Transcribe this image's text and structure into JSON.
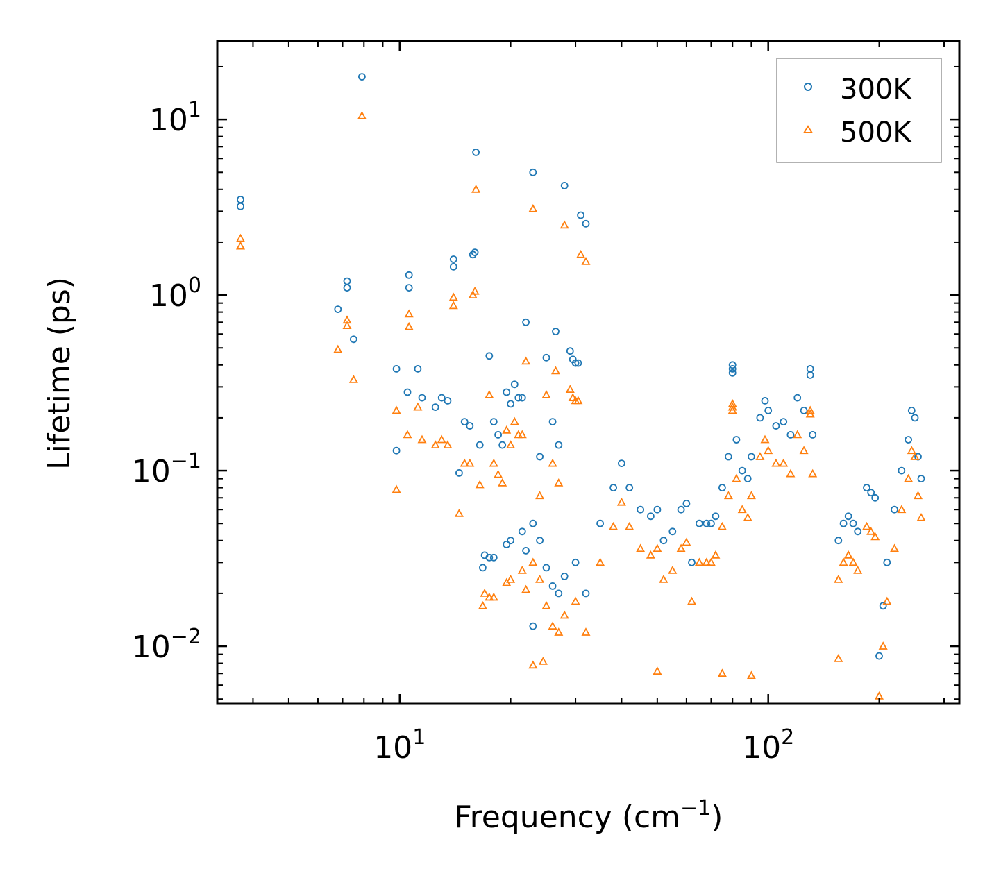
{
  "chart_data": {
    "type": "scatter",
    "title": "",
    "xlabel": "Frequency (cm",
    "xlabel_sup": "−1",
    "xlabel_close": ")",
    "ylabel": "Lifetime (ps)",
    "xscale": "log",
    "yscale": "log",
    "xlim": [
      3.2,
      330
    ],
    "ylim": [
      0.0047,
      28
    ],
    "x_ticks": [
      {
        "base": "10",
        "exp": "1",
        "value": 10
      },
      {
        "base": "10",
        "exp": "2",
        "value": 100
      }
    ],
    "y_ticks": [
      {
        "base": "10",
        "exp": "1",
        "value": 10
      },
      {
        "base": "10",
        "exp": "0",
        "value": 1
      },
      {
        "base": "10",
        "exp": "−1",
        "value": 0.1
      },
      {
        "base": "10",
        "exp": "−2",
        "value": 0.01
      }
    ],
    "legend_position": "top-right",
    "series": [
      {
        "name": "300K",
        "marker": "circle",
        "color": "#1f77b4",
        "points": [
          [
            3.7,
            3.5
          ],
          [
            3.7,
            3.2
          ],
          [
            6.8,
            0.83
          ],
          [
            7.2,
            1.2
          ],
          [
            7.2,
            1.1
          ],
          [
            7.5,
            0.56
          ],
          [
            7.9,
            17.5
          ],
          [
            9.8,
            0.38
          ],
          [
            9.8,
            0.13
          ],
          [
            10.5,
            0.28
          ],
          [
            10.6,
            1.3
          ],
          [
            10.6,
            1.1
          ],
          [
            11.2,
            0.38
          ],
          [
            11.5,
            0.26
          ],
          [
            12.5,
            0.23
          ],
          [
            13,
            0.26
          ],
          [
            13.5,
            0.25
          ],
          [
            14,
            1.6
          ],
          [
            14,
            1.45
          ],
          [
            14.5,
            0.097
          ],
          [
            15,
            0.19
          ],
          [
            15.5,
            0.18
          ],
          [
            15.8,
            1.7
          ],
          [
            16,
            1.75
          ],
          [
            16.1,
            6.5
          ],
          [
            16.5,
            0.14
          ],
          [
            17.5,
            0.45
          ],
          [
            18,
            0.19
          ],
          [
            18.5,
            0.16
          ],
          [
            19,
            0.14
          ],
          [
            19.5,
            0.28
          ],
          [
            20,
            0.24
          ],
          [
            20.5,
            0.31
          ],
          [
            21,
            0.26
          ],
          [
            21.5,
            0.26
          ],
          [
            22,
            0.7
          ],
          [
            23,
            5.0
          ],
          [
            24,
            0.12
          ],
          [
            25,
            0.44
          ],
          [
            26,
            0.19
          ],
          [
            26.5,
            0.62
          ],
          [
            27,
            0.14
          ],
          [
            28,
            4.2
          ],
          [
            29,
            0.48
          ],
          [
            29.5,
            0.43
          ],
          [
            30,
            0.41
          ],
          [
            30.5,
            0.41
          ],
          [
            31,
            2.85
          ],
          [
            32,
            2.55
          ],
          [
            17,
            0.033
          ],
          [
            17.5,
            0.032
          ],
          [
            16.8,
            0.028
          ],
          [
            20,
            0.04
          ],
          [
            22,
            0.035
          ],
          [
            23,
            0.05
          ],
          [
            24,
            0.04
          ],
          [
            21.5,
            0.045
          ],
          [
            19.5,
            0.038
          ],
          [
            18,
            0.032
          ],
          [
            25,
            0.028
          ],
          [
            26,
            0.022
          ],
          [
            23,
            0.013
          ],
          [
            27,
            0.02
          ],
          [
            28,
            0.025
          ],
          [
            30,
            0.03
          ],
          [
            32,
            0.02
          ],
          [
            35,
            0.05
          ],
          [
            38,
            0.08
          ],
          [
            40,
            0.11
          ],
          [
            42,
            0.08
          ],
          [
            45,
            0.06
          ],
          [
            48,
            0.055
          ],
          [
            50,
            0.06
          ],
          [
            52,
            0.04
          ],
          [
            55,
            0.045
          ],
          [
            58,
            0.06
          ],
          [
            60,
            0.065
          ],
          [
            62,
            0.03
          ],
          [
            65,
            0.05
          ],
          [
            68,
            0.05
          ],
          [
            70,
            0.05
          ],
          [
            72,
            0.055
          ],
          [
            75,
            0.08
          ],
          [
            78,
            0.12
          ],
          [
            80,
            0.4
          ],
          [
            80,
            0.38
          ],
          [
            80,
            0.36
          ],
          [
            82,
            0.15
          ],
          [
            85,
            0.1
          ],
          [
            88,
            0.09
          ],
          [
            90,
            0.12
          ],
          [
            95,
            0.2
          ],
          [
            98,
            0.25
          ],
          [
            100,
            0.22
          ],
          [
            105,
            0.18
          ],
          [
            110,
            0.19
          ],
          [
            115,
            0.16
          ],
          [
            120,
            0.26
          ],
          [
            125,
            0.22
          ],
          [
            130,
            0.38
          ],
          [
            130,
            0.35
          ],
          [
            132,
            0.16
          ],
          [
            155,
            0.04
          ],
          [
            160,
            0.05
          ],
          [
            165,
            0.055
          ],
          [
            170,
            0.05
          ],
          [
            175,
            0.045
          ],
          [
            185,
            0.08
          ],
          [
            190,
            0.075
          ],
          [
            195,
            0.07
          ],
          [
            200,
            0.0088
          ],
          [
            205,
            0.017
          ],
          [
            210,
            0.03
          ],
          [
            220,
            0.06
          ],
          [
            230,
            0.1
          ],
          [
            240,
            0.15
          ],
          [
            245,
            0.22
          ],
          [
            250,
            0.2
          ],
          [
            255,
            0.12
          ],
          [
            260,
            0.09
          ]
        ]
      },
      {
        "name": "500K",
        "marker": "triangle",
        "color": "#ff7f0e",
        "points": [
          [
            3.7,
            2.1
          ],
          [
            3.7,
            1.9
          ],
          [
            6.8,
            0.49
          ],
          [
            7.2,
            0.72
          ],
          [
            7.2,
            0.67
          ],
          [
            7.5,
            0.33
          ],
          [
            7.9,
            10.5
          ],
          [
            9.8,
            0.22
          ],
          [
            9.8,
            0.078
          ],
          [
            10.5,
            0.16
          ],
          [
            10.6,
            0.78
          ],
          [
            10.6,
            0.66
          ],
          [
            11.2,
            0.23
          ],
          [
            11.5,
            0.15
          ],
          [
            12.5,
            0.14
          ],
          [
            13,
            0.15
          ],
          [
            13.5,
            0.14
          ],
          [
            14,
            0.97
          ],
          [
            14,
            0.87
          ],
          [
            14.5,
            0.057
          ],
          [
            15,
            0.11
          ],
          [
            15.5,
            0.11
          ],
          [
            15.8,
            1.0
          ],
          [
            16,
            1.05
          ],
          [
            16.1,
            4.0
          ],
          [
            16.5,
            0.083
          ],
          [
            17.5,
            0.27
          ],
          [
            18,
            0.11
          ],
          [
            18.5,
            0.095
          ],
          [
            19,
            0.085
          ],
          [
            19.5,
            0.17
          ],
          [
            20,
            0.14
          ],
          [
            20.5,
            0.19
          ],
          [
            21,
            0.16
          ],
          [
            21.5,
            0.16
          ],
          [
            22,
            0.42
          ],
          [
            23,
            3.1
          ],
          [
            24,
            0.072
          ],
          [
            25,
            0.27
          ],
          [
            26,
            0.11
          ],
          [
            26.5,
            0.37
          ],
          [
            27,
            0.085
          ],
          [
            28,
            2.5
          ],
          [
            29,
            0.29
          ],
          [
            29.5,
            0.26
          ],
          [
            30,
            0.25
          ],
          [
            30.5,
            0.25
          ],
          [
            31,
            1.7
          ],
          [
            32,
            1.55
          ],
          [
            17,
            0.02
          ],
          [
            17.5,
            0.019
          ],
          [
            16.8,
            0.017
          ],
          [
            20,
            0.024
          ],
          [
            22,
            0.021
          ],
          [
            23,
            0.03
          ],
          [
            24,
            0.024
          ],
          [
            21.5,
            0.027
          ],
          [
            19.5,
            0.023
          ],
          [
            18,
            0.019
          ],
          [
            25,
            0.017
          ],
          [
            26,
            0.013
          ],
          [
            23,
            0.0078
          ],
          [
            24.5,
            0.0082
          ],
          [
            27,
            0.012
          ],
          [
            28,
            0.015
          ],
          [
            30,
            0.018
          ],
          [
            32,
            0.012
          ],
          [
            35,
            0.03
          ],
          [
            38,
            0.048
          ],
          [
            40,
            0.066
          ],
          [
            42,
            0.048
          ],
          [
            45,
            0.036
          ],
          [
            48,
            0.033
          ],
          [
            50,
            0.036
          ],
          [
            50,
            0.0072
          ],
          [
            52,
            0.024
          ],
          [
            55,
            0.027
          ],
          [
            58,
            0.036
          ],
          [
            60,
            0.039
          ],
          [
            62,
            0.018
          ],
          [
            65,
            0.03
          ],
          [
            68,
            0.03
          ],
          [
            70,
            0.03
          ],
          [
            72,
            0.033
          ],
          [
            75,
            0.048
          ],
          [
            75,
            0.007
          ],
          [
            78,
            0.072
          ],
          [
            80,
            0.24
          ],
          [
            80,
            0.23
          ],
          [
            80,
            0.22
          ],
          [
            82,
            0.09
          ],
          [
            85,
            0.06
          ],
          [
            88,
            0.054
          ],
          [
            90,
            0.072
          ],
          [
            90,
            0.0068
          ],
          [
            95,
            0.12
          ],
          [
            98,
            0.15
          ],
          [
            100,
            0.13
          ],
          [
            105,
            0.11
          ],
          [
            110,
            0.11
          ],
          [
            115,
            0.096
          ],
          [
            120,
            0.16
          ],
          [
            125,
            0.13
          ],
          [
            130,
            0.22
          ],
          [
            130,
            0.21
          ],
          [
            132,
            0.096
          ],
          [
            155,
            0.024
          ],
          [
            155,
            0.0085
          ],
          [
            160,
            0.03
          ],
          [
            165,
            0.033
          ],
          [
            170,
            0.03
          ],
          [
            175,
            0.027
          ],
          [
            185,
            0.048
          ],
          [
            190,
            0.045
          ],
          [
            195,
            0.042
          ],
          [
            200,
            0.0052
          ],
          [
            205,
            0.01
          ],
          [
            210,
            0.018
          ],
          [
            220,
            0.036
          ],
          [
            230,
            0.06
          ],
          [
            240,
            0.09
          ],
          [
            245,
            0.13
          ],
          [
            250,
            0.12
          ],
          [
            255,
            0.072
          ],
          [
            260,
            0.054
          ]
        ]
      }
    ]
  }
}
